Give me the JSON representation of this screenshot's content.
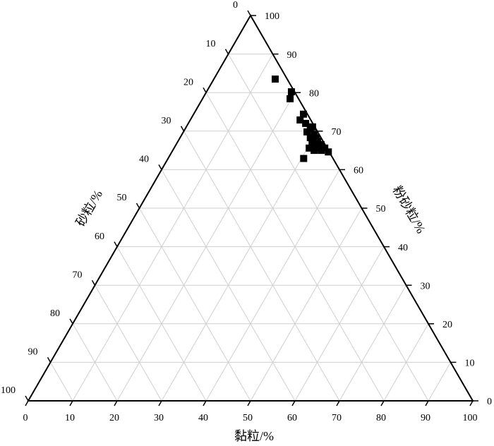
{
  "chart_data": {
    "type": "ternary",
    "clay_axis": {
      "title": "黏粒/%",
      "ticks": [
        0,
        10,
        20,
        30,
        40,
        50,
        60,
        70,
        80,
        90,
        100
      ]
    },
    "silt_axis": {
      "title": "粉砂粒/%",
      "ticks": [
        0,
        10,
        20,
        30,
        40,
        50,
        60,
        70,
        80,
        90,
        100
      ]
    },
    "sand_axis": {
      "title": "砂粒/%",
      "ticks": [
        0,
        10,
        20,
        30,
        40,
        50,
        60,
        70,
        80,
        90,
        100
      ]
    },
    "grid": true,
    "series": [
      {
        "color": "#000000",
        "clay": [
          13.8,
          19.1,
          19.7,
          24.7,
          24.7,
          26.4,
          28.1,
          28.4,
          27.8,
          29.7,
          30.6,
          29.3,
          31.4,
          30.6,
          32.6,
          30.4,
          32.0,
          33.9,
          31.8,
          33.4,
          35.2,
          30.5,
          32.4,
          30.9
        ],
        "silt": [
          83.5,
          80.2,
          78.4,
          74.4,
          72.9,
          72.0,
          70.7,
          71.1,
          69.8,
          69.2,
          68.3,
          68.3,
          67.4,
          66.5,
          66.5,
          65.6,
          65.6,
          65.6,
          65.0,
          65.0,
          64.6,
          62.9,
          65.9,
          67.4
        ],
        "sand": [
          2.7,
          0.7,
          1.9,
          0.9,
          2.4,
          1.6,
          1.2,
          0.5,
          2.4,
          1.1,
          1.1,
          2.4,
          1.2,
          2.9,
          0.9,
          4.0,
          2.4,
          0.5,
          3.2,
          1.6,
          0.2,
          6.6,
          1.7,
          1.7
        ]
      }
    ]
  }
}
